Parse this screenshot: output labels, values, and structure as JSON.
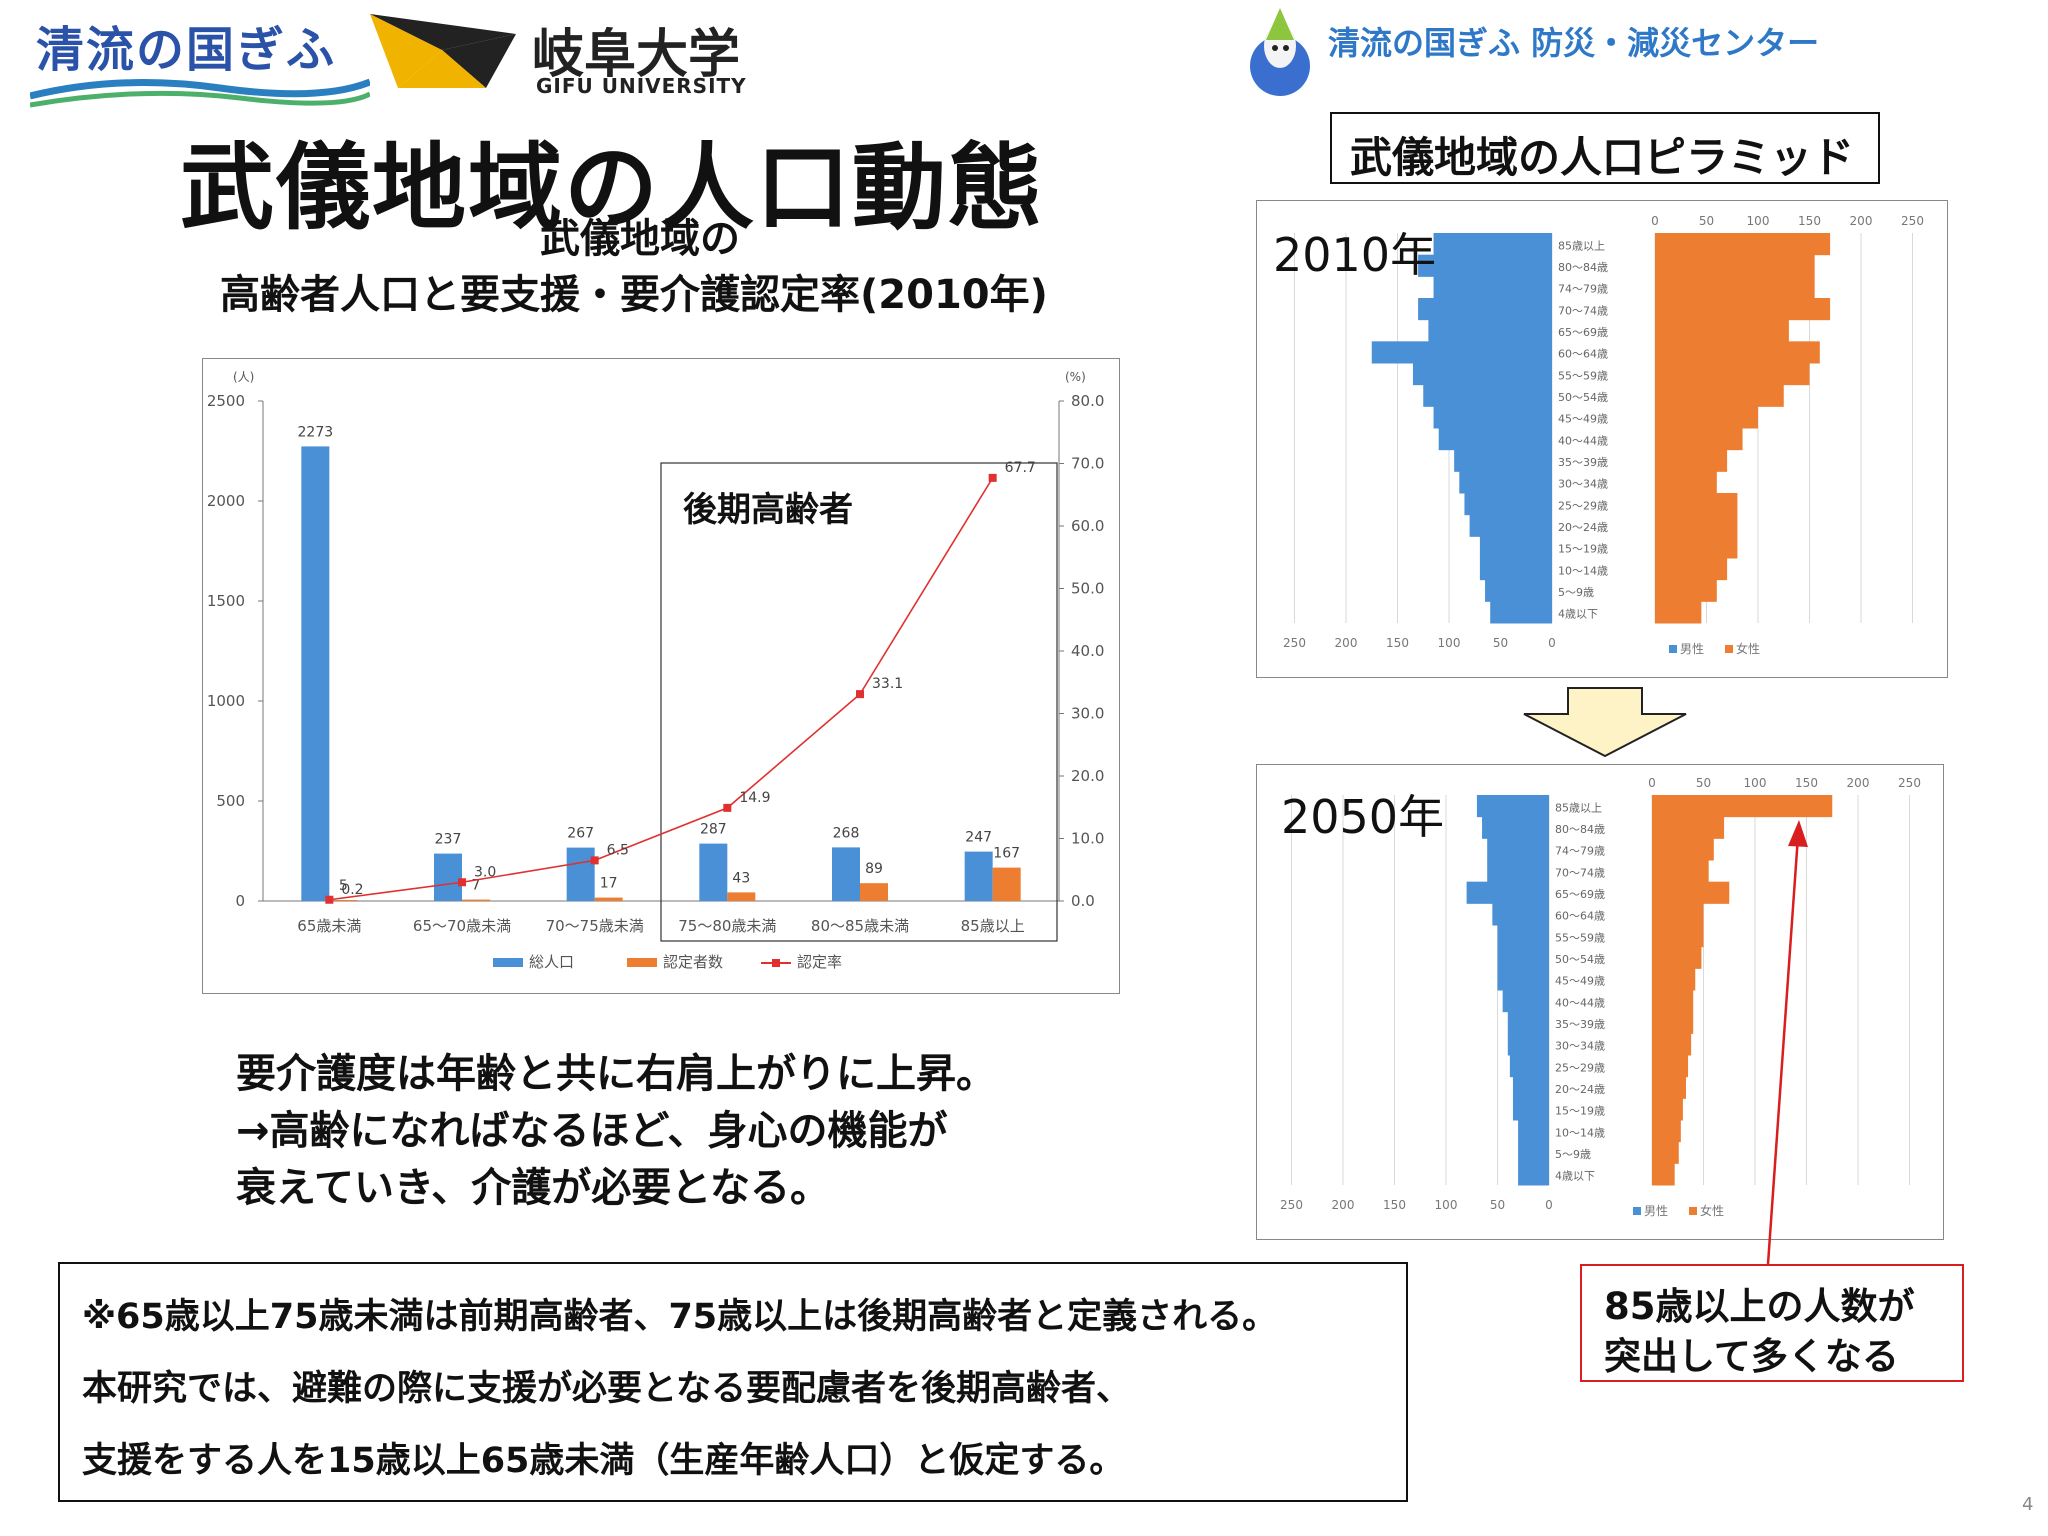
{
  "header": {
    "logo_seiryu_text": "清流の国ぎふ",
    "logo_gifu_univ_jp": "岐阜大学",
    "logo_gifu_univ_en": "GIFU UNIVERSITY",
    "center_name": "清流の国ぎふ 防災・減災センター"
  },
  "title": "武儀地域の人口動態",
  "chart_title_line1": "武儀地域の",
  "chart_title_line2": "高齢者人口と要支援・要介護認定率(2010年)",
  "pyramid_title": "武儀地域の人口ピラミッド",
  "chart_data": [
    {
      "type": "bar",
      "categories": [
        "65歳未満",
        "65～70歳未満",
        "70～75歳未満",
        "75～80歳未満",
        "80～85歳未満",
        "85歳以上"
      ],
      "series": [
        {
          "name": "総人口",
          "type": "bar",
          "axis": "left",
          "color": "#4a90d6",
          "values": [
            2273,
            237,
            267,
            287,
            268,
            247
          ]
        },
        {
          "name": "認定者数",
          "type": "bar",
          "axis": "left",
          "color": "#ed7d31",
          "values": [
            5,
            7,
            17,
            43,
            89,
            167
          ]
        },
        {
          "name": "認定率",
          "type": "line",
          "axis": "right",
          "color": "#e03030",
          "values": [
            0.2,
            3.0,
            6.5,
            14.9,
            33.1,
            67.7
          ]
        }
      ],
      "left_unit": "(人)",
      "right_unit": "(%)",
      "ylim": [
        0,
        2500
      ],
      "yticks": [
        "0",
        "500",
        "1000",
        "1500",
        "2000",
        "2500"
      ],
      "y2lim": [
        0,
        80
      ],
      "y2ticks": [
        "0.0",
        "10.0",
        "20.0",
        "30.0",
        "40.0",
        "50.0",
        "60.0",
        "70.0",
        "80.0"
      ],
      "annotation": "後期高齢者",
      "legend_position": "bottom"
    },
    {
      "type": "bar",
      "orientation": "horizontal",
      "year_label": "2010年",
      "age_groups": [
        "85歳以上",
        "80～84歳",
        "74～79歳",
        "70～74歳",
        "65～69歳",
        "60～64歳",
        "55～59歳",
        "50～54歳",
        "45～49歳",
        "40～44歳",
        "35～39歳",
        "30～34歳",
        "25～29歳",
        "20～24歳",
        "15～19歳",
        "10～14歳",
        "5～9歳",
        "4歳以下"
      ],
      "series": [
        {
          "name": "男性",
          "color": "#4a90d6",
          "values": [
            115,
            130,
            115,
            130,
            120,
            175,
            135,
            125,
            115,
            110,
            95,
            90,
            85,
            80,
            70,
            70,
            65,
            60
          ]
        },
        {
          "name": "女性",
          "color": "#ed7d31",
          "values": [
            170,
            155,
            155,
            170,
            130,
            160,
            150,
            125,
            100,
            85,
            70,
            60,
            80,
            80,
            80,
            70,
            60,
            45
          ]
        }
      ],
      "xticks_left": [
        "250",
        "200",
        "150",
        "100",
        "50",
        "0"
      ],
      "xticks_right": [
        "0",
        "50",
        "100",
        "150",
        "200",
        "250"
      ],
      "legend_position": "bottom-right"
    },
    {
      "type": "bar",
      "orientation": "horizontal",
      "year_label": "2050年",
      "age_groups": [
        "85歳以上",
        "80～84歳",
        "74～79歳",
        "70～74歳",
        "65～69歳",
        "60～64歳",
        "55～59歳",
        "50～54歳",
        "45～49歳",
        "40～44歳",
        "35～39歳",
        "30～34歳",
        "25～29歳",
        "20～24歳",
        "15～19歳",
        "10～14歳",
        "5～9歳",
        "4歳以下"
      ],
      "series": [
        {
          "name": "男性",
          "color": "#4a90d6",
          "values": [
            70,
            65,
            60,
            60,
            80,
            55,
            50,
            50,
            50,
            45,
            40,
            40,
            38,
            35,
            35,
            30,
            30,
            30
          ]
        },
        {
          "name": "女性",
          "color": "#ed7d31",
          "values": [
            175,
            70,
            60,
            55,
            75,
            50,
            50,
            48,
            42,
            40,
            40,
            38,
            35,
            33,
            30,
            28,
            26,
            22
          ]
        }
      ],
      "xticks_left": [
        "250",
        "200",
        "150",
        "100",
        "50",
        "0"
      ],
      "xticks_right": [
        "0",
        "50",
        "100",
        "150",
        "200",
        "250"
      ],
      "legend_position": "bottom-right"
    }
  ],
  "summary_lines": [
    "要介護度は年齢と共に右肩上がりに上昇。",
    "→高齢になればなるほど、身心の機能が",
    "衰えていき、介護が必要となる。"
  ],
  "note_lines": [
    "※65歳以上75歳未満は前期高齢者、75歳以上は後期高齢者と定義される。",
    "本研究では、避難の際に支援が必要となる要配慮者を後期高齢者、",
    "支援をする人を15歳以上65歳未満（生産年齢人口）と仮定する。"
  ],
  "callout_lines": [
    "85歳以上の人数が",
    "突出して多くなる"
  ],
  "page_number": "4",
  "colors": {
    "male": "#4a90d6",
    "female": "#ed7d31",
    "rate_line": "#e03030",
    "callout": "#d81e1e",
    "center_name": "#2f78c8",
    "arrow_fill": "#fdf3c6"
  }
}
